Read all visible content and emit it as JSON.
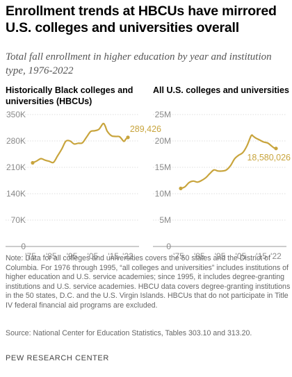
{
  "header": {
    "title": "Enrollment trends at HBCUs have mirrored U.S. colleges and universities overall",
    "subtitle": "Total fall enrollment in higher education by year and institution type, 1976-2022"
  },
  "chart_data": [
    {
      "type": "line",
      "title": "Historically Black colleges and universities (HBCUs)",
      "ylim": [
        0,
        350000
      ],
      "yticks": [
        0,
        70000,
        140000,
        210000,
        280000,
        350000
      ],
      "ytick_labels": [
        "0",
        "70K",
        "140K",
        "210K",
        "280K",
        "350K"
      ],
      "xlim": [
        1975,
        2022
      ],
      "xticks": [
        1975,
        1985,
        1995,
        2005,
        2015,
        2022
      ],
      "xtick_labels": [
        "'75",
        "'85",
        "'95",
        "'05",
        "'15",
        "'22"
      ],
      "grid": true,
      "color": "#c8a43c",
      "end_label": "289,426",
      "series": [
        {
          "x": [
            1976,
            1978,
            1980,
            1982,
            1984,
            1986,
            1988,
            1990,
            1992,
            1994,
            1996,
            1998,
            2000,
            2002,
            2004,
            2006,
            2008,
            2010,
            2011,
            2012,
            2014,
            2016,
            2018,
            2020,
            2021,
            2022
          ],
          "values": [
            222000,
            227000,
            233000,
            229000,
            226000,
            223000,
            240000,
            258000,
            279000,
            280000,
            272000,
            274000,
            275000,
            290000,
            305000,
            307000,
            311000,
            326000,
            320000,
            306000,
            294000,
            292000,
            291000,
            279000,
            285000,
            289426
          ]
        }
      ]
    },
    {
      "type": "line",
      "title": "All U.S. colleges and universities",
      "ylim": [
        0,
        25000000
      ],
      "yticks": [
        0,
        5000000,
        10000000,
        15000000,
        20000000,
        25000000
      ],
      "ytick_labels": [
        "0",
        "5M",
        "10M",
        "15M",
        "20M",
        "25M"
      ],
      "xlim": [
        1975,
        2022
      ],
      "xticks": [
        1975,
        1985,
        1995,
        2005,
        2015,
        2022
      ],
      "xtick_labels": [
        "'75",
        "'85",
        "'95",
        "'05",
        "'15",
        "'22"
      ],
      "grid": true,
      "color": "#c8a43c",
      "end_label": "18,580,026",
      "series": [
        {
          "x": [
            1976,
            1978,
            1980,
            1982,
            1984,
            1986,
            1988,
            1990,
            1992,
            1994,
            1996,
            1998,
            2000,
            2002,
            2004,
            2006,
            2008,
            2010,
            2011,
            2012,
            2014,
            2016,
            2018,
            2020,
            2021,
            2022
          ],
          "values": [
            11000000,
            11300000,
            12100000,
            12400000,
            12200000,
            12500000,
            13000000,
            13800000,
            14500000,
            14300000,
            14300000,
            14500000,
            15300000,
            16600000,
            17300000,
            17800000,
            19100000,
            21000000,
            20900000,
            20600000,
            20200000,
            19800000,
            19600000,
            19000000,
            18700000,
            18580026
          ]
        }
      ]
    }
  ],
  "footer": {
    "note": "Note: Data for all colleges and universities covers the 50 states and the District of Columbia. For 1976 through 1995, “all colleges and universities” includes institutions of higher education and U.S. service academies; since 1995, it includes degree-granting institutions and U.S. service academies. HBCU data covers degree-granting institutions in the 50 states, D.C. and the U.S. Virgin Islands. HBCUs that do not participate in Title IV federal financial aid programs are excluded.",
    "source": "Source: National Center for Education Statistics, Tables 303.10 and 313.20.",
    "brand": "PEW RESEARCH CENTER"
  }
}
